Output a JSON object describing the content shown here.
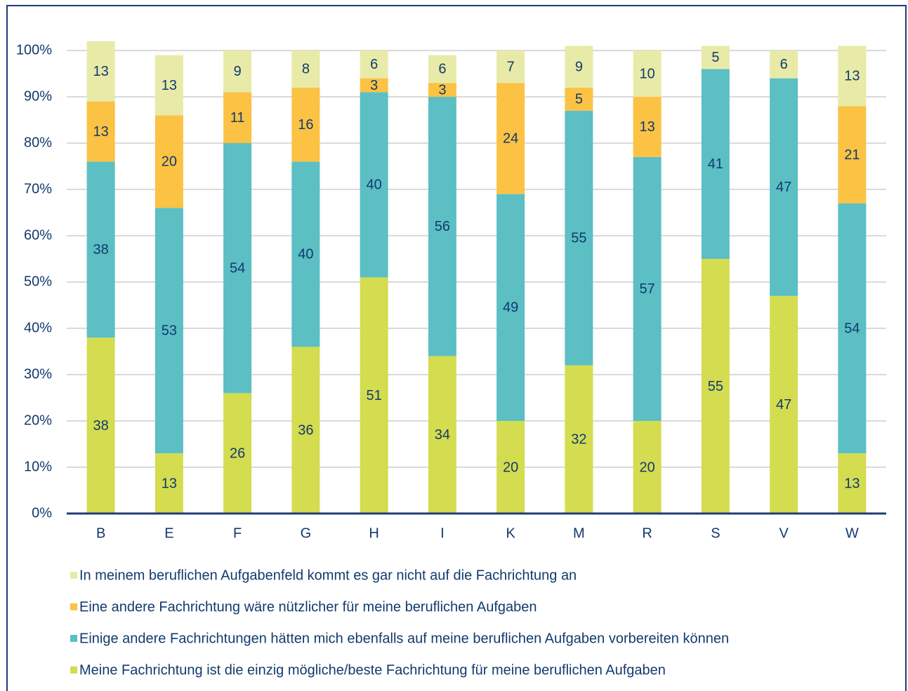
{
  "chart_data": {
    "type": "stacked_bar",
    "categories": [
      "B",
      "E",
      "F",
      "G",
      "H",
      "I",
      "K",
      "M",
      "R",
      "S",
      "V",
      "W"
    ],
    "series": [
      {
        "name": "Meine Fachrichtung ist die einzig mögliche/beste Fachrichtung für meine beruflichen Aufgaben",
        "color": "#d4dc50",
        "values": [
          38,
          13,
          26,
          36,
          51,
          34,
          20,
          32,
          20,
          55,
          47,
          13
        ]
      },
      {
        "name": "Einige andere Fachrichtungen hätten mich ebenfalls auf meine beruflichen Aufgaben vorbereiten können",
        "color": "#5bbfc4",
        "values": [
          38,
          53,
          54,
          40,
          40,
          56,
          49,
          55,
          57,
          41,
          47,
          54
        ]
      },
      {
        "name": "Eine andere Fachrichtung wäre nützlicher für meine beruflichen Aufgaben",
        "color": "#fbc244",
        "values": [
          13,
          20,
          11,
          16,
          3,
          3,
          24,
          5,
          13,
          null,
          null,
          21
        ]
      },
      {
        "name": "In meinem beruflichen Aufgabenfeld kommt es gar nicht auf die Fachrichtung an",
        "color": "#e8eaa8",
        "values": [
          13,
          13,
          9,
          8,
          6,
          6,
          7,
          9,
          10,
          5,
          6,
          13
        ]
      }
    ],
    "ylim": [
      0,
      100
    ],
    "yticks": [
      {
        "value": 0,
        "label": "0%"
      },
      {
        "value": 10,
        "label": "10%"
      },
      {
        "value": 20,
        "label": "20%"
      },
      {
        "value": 30,
        "label": "30%"
      },
      {
        "value": 40,
        "label": "40%"
      },
      {
        "value": 50,
        "label": "50%"
      },
      {
        "value": 60,
        "label": "60%"
      },
      {
        "value": 70,
        "label": "70%"
      },
      {
        "value": 80,
        "label": "80%"
      },
      {
        "value": 90,
        "label": "90%"
      },
      {
        "value": 100,
        "label": "100%"
      }
    ],
    "grid": true,
    "legend": "bottom"
  }
}
